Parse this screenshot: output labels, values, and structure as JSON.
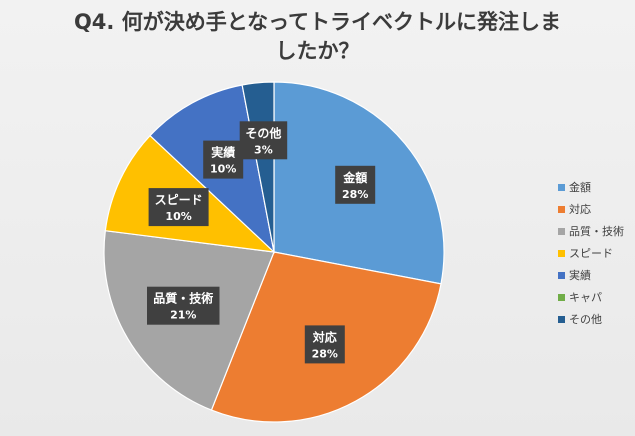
{
  "chart_data": {
    "type": "pie",
    "title_lines": [
      "Q4. 何が決め手となってトライベクトルに発注しま",
      "したか？"
    ],
    "slices": [
      {
        "label": "金額",
        "value": 28,
        "percent_label": "28%",
        "color": "#5b9bd5",
        "show_label": true
      },
      {
        "label": "対応",
        "value": 28,
        "percent_label": "28%",
        "color": "#ed7d31",
        "show_label": true
      },
      {
        "label": "品質・技術",
        "value": 21,
        "percent_label": "21%",
        "color": "#a5a5a5",
        "show_label": true
      },
      {
        "label": "スピード",
        "value": 10,
        "percent_label": "10%",
        "color": "#ffc000",
        "show_label": true
      },
      {
        "label": "実績",
        "value": 10,
        "percent_label": "10%",
        "color": "#4472c4",
        "show_label": true
      },
      {
        "label": "キャパ",
        "value": 0,
        "percent_label": "0%",
        "color": "#70ad47",
        "show_label": false
      },
      {
        "label": "その他",
        "value": 3,
        "percent_label": "3%",
        "color": "#255e91",
        "show_label": true
      }
    ],
    "legend_placement": "right",
    "start_angle": "top, clockwise"
  }
}
